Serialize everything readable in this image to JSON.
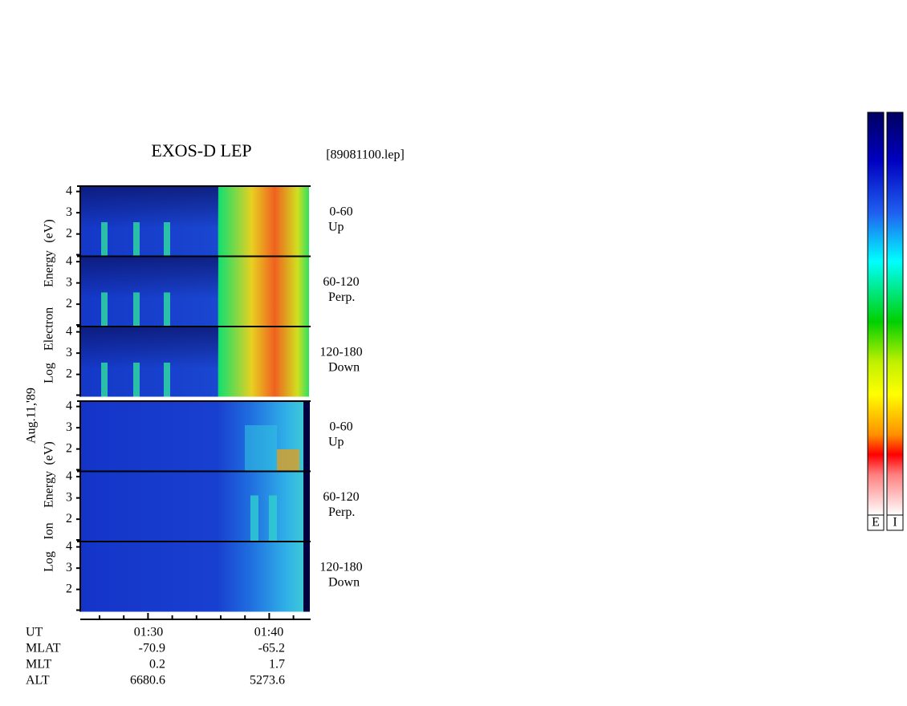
{
  "title": "EXOS-D LEP",
  "file": "[89081100.lep]",
  "date": "Aug.11,'89",
  "electron": {
    "ylabel": [
      "Log",
      "Electron",
      "Energy",
      "(eV)"
    ],
    "panels": [
      {
        "label": "0-60",
        "sub": "Up",
        "yticks": [
          4,
          3,
          2
        ]
      },
      {
        "label": "60-120",
        "sub": "Perp.",
        "yticks": [
          4,
          3,
          2
        ]
      },
      {
        "label": "120-180",
        "sub": "Down",
        "yticks": [
          4,
          3,
          2
        ]
      }
    ]
  },
  "ion": {
    "ylabel": [
      "Log",
      "Ion",
      "Energy",
      "(eV)"
    ],
    "panels": [
      {
        "label": "0-60",
        "sub": "Up",
        "yticks": [
          4,
          3,
          2
        ]
      },
      {
        "label": "60-120",
        "sub": "Perp.",
        "yticks": [
          4,
          3,
          2
        ]
      },
      {
        "label": "120-180",
        "sub": "Down",
        "yticks": [
          4,
          3,
          2
        ]
      }
    ]
  },
  "time_axis": {
    "rows": [
      [
        "UT",
        "01:30",
        "01:40"
      ],
      [
        "MLAT",
        "-70.9",
        "-65.2"
      ],
      [
        "MLT",
        "0.2",
        "1.7"
      ],
      [
        "ALT",
        "6680.6",
        "5273.6"
      ]
    ]
  },
  "colorbars": [
    "E",
    "I"
  ]
}
